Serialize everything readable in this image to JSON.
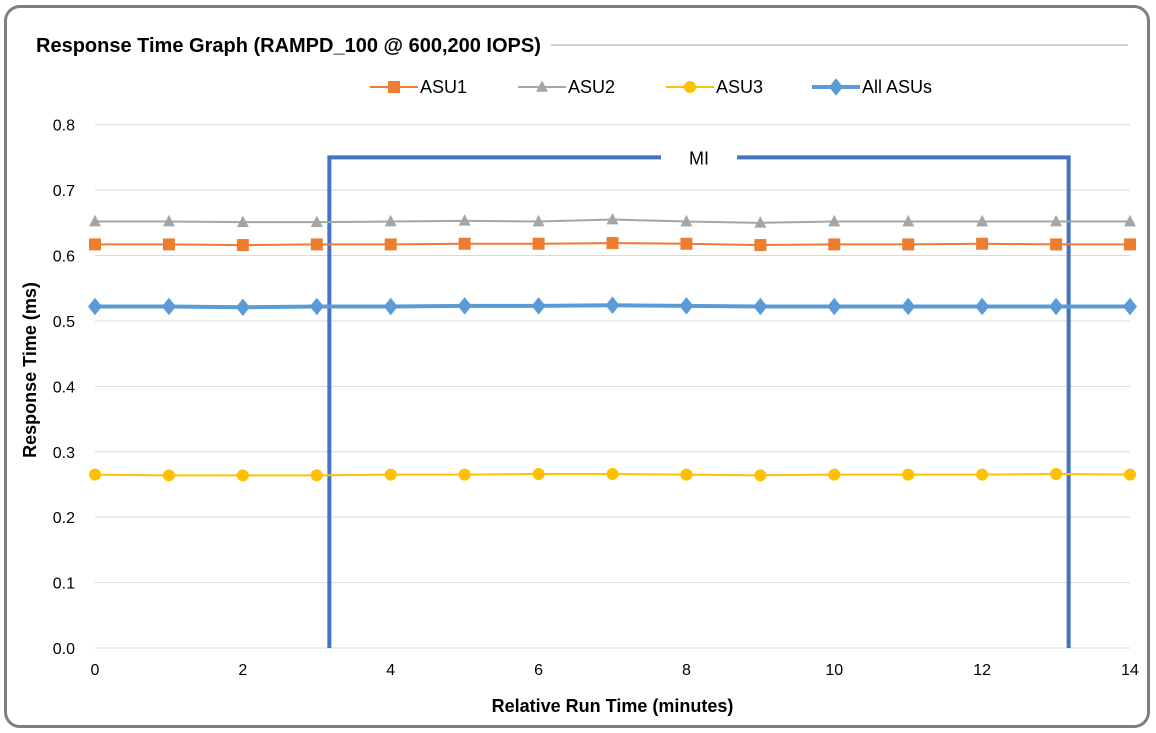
{
  "chart_data": {
    "type": "line",
    "title": "Response Time Graph (RAMPD_100 @ 600,200 IOPS)",
    "xlabel": "Relative Run Time (minutes)",
    "ylabel": "Response Time (ms)",
    "xlim": [
      0,
      14
    ],
    "ylim": [
      0,
      0.85
    ],
    "xticks": [
      0,
      2,
      4,
      6,
      8,
      10,
      12,
      14
    ],
    "yticks": [
      0.0,
      0.1,
      0.2,
      0.3,
      0.4,
      0.5,
      0.6,
      0.7,
      0.8
    ],
    "ytick_labels": [
      "0.0",
      "0.1",
      "0.2",
      "0.3",
      "0.4",
      "0.5",
      "0.6",
      "0.7",
      "0.8"
    ],
    "grid": "horizontal",
    "legend_position": "top",
    "x": [
      0,
      1,
      2,
      3,
      4,
      5,
      6,
      7,
      8,
      9,
      10,
      11,
      12,
      13,
      14
    ],
    "series": [
      {
        "name": "ASU1",
        "color": "#ed7d31",
        "marker": "square",
        "values": [
          0.617,
          0.617,
          0.616,
          0.617,
          0.617,
          0.618,
          0.618,
          0.619,
          0.618,
          0.616,
          0.617,
          0.617,
          0.618,
          0.617,
          0.617
        ]
      },
      {
        "name": "ASU2",
        "color": "#a5a5a5",
        "marker": "triangle",
        "values": [
          0.652,
          0.652,
          0.651,
          0.651,
          0.652,
          0.653,
          0.652,
          0.655,
          0.652,
          0.65,
          0.652,
          0.652,
          0.652,
          0.652,
          0.652
        ]
      },
      {
        "name": "ASU3",
        "color": "#ffc000",
        "marker": "circle",
        "values": [
          0.265,
          0.264,
          0.264,
          0.264,
          0.265,
          0.265,
          0.266,
          0.266,
          0.265,
          0.264,
          0.265,
          0.265,
          0.265,
          0.266,
          0.265
        ]
      },
      {
        "name": "All ASUs",
        "color": "#5b9bd5",
        "marker": "diamond",
        "values": [
          0.522,
          0.522,
          0.521,
          0.522,
          0.522,
          0.523,
          0.523,
          0.524,
          0.523,
          0.522,
          0.522,
          0.522,
          0.522,
          0.522,
          0.522
        ]
      }
    ],
    "annotation": {
      "label": "MI",
      "x_start": 3.17,
      "x_end": 13.17,
      "y": 0.75,
      "color": "#4472c4"
    }
  }
}
